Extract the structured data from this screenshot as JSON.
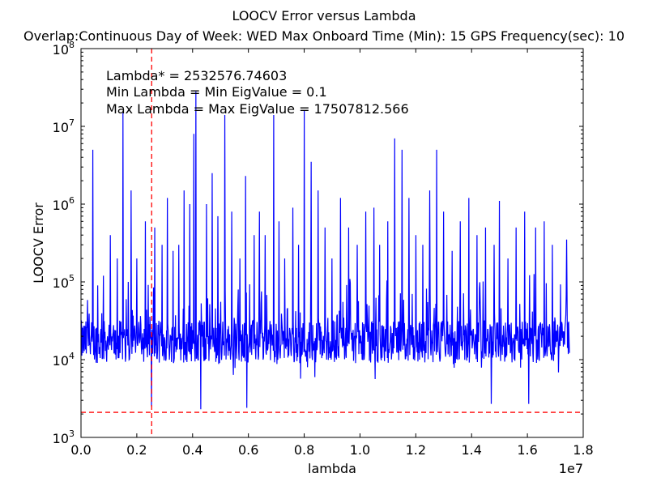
{
  "chart_data": {
    "type": "line",
    "title": "LOOCV Error versus Lambda",
    "subtitle": "Overlap:Continuous    Day of Week: WED    Max Onboard Time (Min): 15    GPS Frequency(sec): 10",
    "xlabel": "lambda",
    "ylabel": "LOOCV Error",
    "x_offset_label": "1e7",
    "xlim": [
      0,
      18000000
    ],
    "ylim": [
      1000,
      100000000
    ],
    "yscale": "log",
    "grid": false,
    "legend": "none",
    "x_ticks": [
      0,
      2000000,
      4000000,
      6000000,
      8000000,
      10000000,
      12000000,
      14000000,
      16000000,
      18000000
    ],
    "x_tick_labels": [
      "0.0",
      "0.2",
      "0.4",
      "0.6",
      "0.8",
      "1.0",
      "1.2",
      "1.4",
      "1.6",
      "1.8"
    ],
    "y_ticks": [
      1000,
      10000,
      100000,
      1000000,
      10000000,
      100000000
    ],
    "y_tick_bases": [
      "10",
      "10",
      "10",
      "10",
      "10",
      "10"
    ],
    "y_tick_exps": [
      "3",
      "4",
      "5",
      "6",
      "7",
      "8"
    ],
    "annotations": [
      "Lambda* = 2532576.74603",
      "Min Lambda = Min EigValue = 0.1",
      "Max Lambda = Max EigValue = 17507812.566"
    ],
    "reference_lines": {
      "vertical_x": 2532576.74603,
      "horizontal_y": 2100,
      "color": "#ff0000",
      "style": "dashed"
    },
    "series": [
      {
        "color": "#0000ff",
        "baseline": 17000,
        "x_start": 0.1,
        "x_end": 17507812.566,
        "points": 1200,
        "spikes": [
          [
            420000,
            5000000
          ],
          [
            600000,
            90000
          ],
          [
            800000,
            120000
          ],
          [
            1050000,
            400000
          ],
          [
            1300000,
            200000
          ],
          [
            1500000,
            15000000
          ],
          [
            1700000,
            100000
          ],
          [
            1800000,
            1500000
          ],
          [
            2000000,
            200000
          ],
          [
            2300000,
            600000
          ],
          [
            2532576.74603,
            2500
          ],
          [
            2650000,
            500000
          ],
          [
            2900000,
            300000
          ],
          [
            3100000,
            1200000
          ],
          [
            3300000,
            250000
          ],
          [
            3500000,
            300000
          ],
          [
            3700000,
            1500000
          ],
          [
            3900000,
            1000000
          ],
          [
            4050000,
            8000000
          ],
          [
            4120000,
            28000000
          ],
          [
            4300000,
            2300
          ],
          [
            4500000,
            1000000
          ],
          [
            4700000,
            2500000
          ],
          [
            4900000,
            700000
          ],
          [
            5150000,
            14000000
          ],
          [
            5400000,
            800000
          ],
          [
            5700000,
            200000
          ],
          [
            5900000,
            2300000
          ],
          [
            5950000,
            2400
          ],
          [
            6200000,
            400000
          ],
          [
            6400000,
            800000
          ],
          [
            6600000,
            400000
          ],
          [
            6900000,
            14000000
          ],
          [
            7100000,
            600000
          ],
          [
            7300000,
            200000
          ],
          [
            7600000,
            900000
          ],
          [
            7800000,
            300000
          ],
          [
            8000000,
            16000000
          ],
          [
            8250000,
            3500000
          ],
          [
            8500000,
            1500000
          ],
          [
            8750000,
            500000
          ],
          [
            9000000,
            200000
          ],
          [
            9300000,
            1200000
          ],
          [
            9600000,
            500000
          ],
          [
            9900000,
            300000
          ],
          [
            10200000,
            800000
          ],
          [
            10500000,
            900000
          ],
          [
            10700000,
            300000
          ],
          [
            11000000,
            600000
          ],
          [
            11250000,
            7000000
          ],
          [
            11500000,
            5000000
          ],
          [
            11750000,
            1200000
          ],
          [
            12000000,
            400000
          ],
          [
            12250000,
            300000
          ],
          [
            12500000,
            1500000
          ],
          [
            12750000,
            5000000
          ],
          [
            13000000,
            800000
          ],
          [
            13300000,
            250000
          ],
          [
            13600000,
            600000
          ],
          [
            13900000,
            1200000
          ],
          [
            14200000,
            400000
          ],
          [
            14500000,
            500000
          ],
          [
            14700000,
            2700
          ],
          [
            14800000,
            300000
          ],
          [
            15000000,
            1100000
          ],
          [
            15300000,
            200000
          ],
          [
            15600000,
            500000
          ],
          [
            15900000,
            800000
          ],
          [
            16050000,
            2700
          ],
          [
            16300000,
            500000
          ],
          [
            16600000,
            600000
          ],
          [
            16900000,
            300000
          ],
          [
            17400000,
            350000
          ]
        ]
      }
    ]
  }
}
